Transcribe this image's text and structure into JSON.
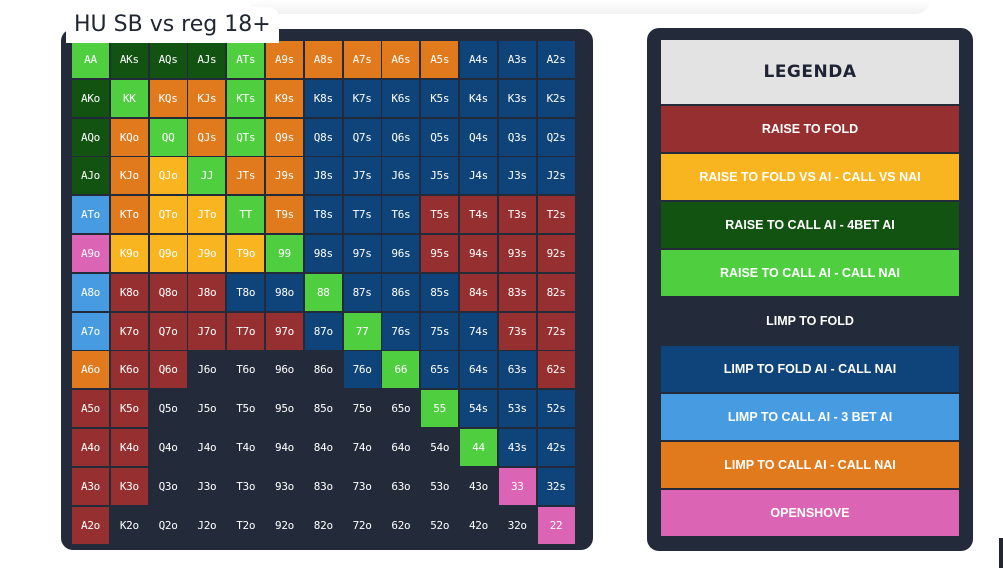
{
  "title": "HU SB vs reg 18+",
  "colors": {
    "R2F": "#963030",
    "R2F_VS": "#f9b520",
    "RC_4B": "#125312",
    "RC_CN": "#4fcf40",
    "LF": "#232b3a",
    "LF_CN": "#0f447a",
    "LC_3B": "#479be0",
    "LC_CN": "#e07a1c",
    "OS": "#dc64b4"
  },
  "legend": {
    "title": "LEGENDA",
    "items": [
      {
        "code": "R2F",
        "label": "RAISE TO FOLD"
      },
      {
        "code": "R2F_VS",
        "label": "RAISE TO FOLD VS AI - CALL VS NAI"
      },
      {
        "code": "RC_4B",
        "label": "RAISE TO CALL AI - 4BET AI"
      },
      {
        "code": "RC_CN",
        "label": "RAISE TO CALL AI - CALL NAI"
      },
      {
        "code": "LF",
        "label": "LIMP TO FOLD"
      },
      {
        "code": "LF_CN",
        "label": "LIMP TO FOLD AI - CALL NAI"
      },
      {
        "code": "LC_3B",
        "label": "LIMP TO CALL AI - 3 BET AI"
      },
      {
        "code": "LC_CN",
        "label": "LIMP TO CALL AI - CALL NAI"
      },
      {
        "code": "OS",
        "label": "OPENSHOVE"
      }
    ]
  },
  "grid": {
    "rows": [
      [
        [
          "AA",
          "RC_CN"
        ],
        [
          "AKs",
          "RC_4B"
        ],
        [
          "AQs",
          "RC_4B"
        ],
        [
          "AJs",
          "RC_4B"
        ],
        [
          "ATs",
          "RC_CN"
        ],
        [
          "A9s",
          "LC_CN"
        ],
        [
          "A8s",
          "LC_CN"
        ],
        [
          "A7s",
          "LC_CN"
        ],
        [
          "A6s",
          "LC_CN"
        ],
        [
          "A5s",
          "LC_CN"
        ],
        [
          "A4s",
          "LF_CN"
        ],
        [
          "A3s",
          "LF_CN"
        ],
        [
          "A2s",
          "LF_CN"
        ]
      ],
      [
        [
          "AKo",
          "RC_4B"
        ],
        [
          "KK",
          "RC_CN"
        ],
        [
          "KQs",
          "LC_CN"
        ],
        [
          "KJs",
          "LC_CN"
        ],
        [
          "KTs",
          "RC_CN"
        ],
        [
          "K9s",
          "LC_CN"
        ],
        [
          "K8s",
          "LF_CN"
        ],
        [
          "K7s",
          "LF_CN"
        ],
        [
          "K6s",
          "LF_CN"
        ],
        [
          "K5s",
          "LF_CN"
        ],
        [
          "K4s",
          "LF_CN"
        ],
        [
          "K3s",
          "LF_CN"
        ],
        [
          "K2s",
          "LF_CN"
        ]
      ],
      [
        [
          "AQo",
          "RC_4B"
        ],
        [
          "KQo",
          "LC_CN"
        ],
        [
          "QQ",
          "RC_CN"
        ],
        [
          "QJs",
          "LC_CN"
        ],
        [
          "QTs",
          "RC_CN"
        ],
        [
          "Q9s",
          "LC_CN"
        ],
        [
          "Q8s",
          "LF_CN"
        ],
        [
          "Q7s",
          "LF_CN"
        ],
        [
          "Q6s",
          "LF_CN"
        ],
        [
          "Q5s",
          "LF_CN"
        ],
        [
          "Q4s",
          "LF_CN"
        ],
        [
          "Q3s",
          "LF_CN"
        ],
        [
          "Q2s",
          "LF_CN"
        ]
      ],
      [
        [
          "AJo",
          "RC_4B"
        ],
        [
          "KJo",
          "LC_CN"
        ],
        [
          "QJo",
          "R2F_VS"
        ],
        [
          "JJ",
          "RC_CN"
        ],
        [
          "JTs",
          "LC_CN"
        ],
        [
          "J9s",
          "LC_CN"
        ],
        [
          "J8s",
          "LF_CN"
        ],
        [
          "J7s",
          "LF_CN"
        ],
        [
          "J6s",
          "LF_CN"
        ],
        [
          "J5s",
          "LF_CN"
        ],
        [
          "J4s",
          "LF_CN"
        ],
        [
          "J3s",
          "LF_CN"
        ],
        [
          "J2s",
          "LF_CN"
        ]
      ],
      [
        [
          "ATo",
          "LC_3B"
        ],
        [
          "KTo",
          "LC_CN"
        ],
        [
          "QTo",
          "R2F_VS"
        ],
        [
          "JTo",
          "R2F_VS"
        ],
        [
          "TT",
          "RC_CN"
        ],
        [
          "T9s",
          "LC_CN"
        ],
        [
          "T8s",
          "LF_CN"
        ],
        [
          "T7s",
          "LF_CN"
        ],
        [
          "T6s",
          "LF_CN"
        ],
        [
          "T5s",
          "R2F"
        ],
        [
          "T4s",
          "R2F"
        ],
        [
          "T3s",
          "R2F"
        ],
        [
          "T2s",
          "R2F"
        ]
      ],
      [
        [
          "A9o",
          "OS"
        ],
        [
          "K9o",
          "R2F_VS"
        ],
        [
          "Q9o",
          "R2F_VS"
        ],
        [
          "J9o",
          "R2F_VS"
        ],
        [
          "T9o",
          "R2F_VS"
        ],
        [
          "99",
          "RC_CN"
        ],
        [
          "98s",
          "LF_CN"
        ],
        [
          "97s",
          "LF_CN"
        ],
        [
          "96s",
          "LF_CN"
        ],
        [
          "95s",
          "R2F"
        ],
        [
          "94s",
          "R2F"
        ],
        [
          "93s",
          "R2F"
        ],
        [
          "92s",
          "R2F"
        ]
      ],
      [
        [
          "A8o",
          "LC_3B"
        ],
        [
          "K8o",
          "R2F"
        ],
        [
          "Q8o",
          "R2F"
        ],
        [
          "J8o",
          "R2F"
        ],
        [
          "T8o",
          "LF_CN"
        ],
        [
          "98o",
          "LF_CN"
        ],
        [
          "88",
          "RC_CN"
        ],
        [
          "87s",
          "LF_CN"
        ],
        [
          "86s",
          "LF_CN"
        ],
        [
          "85s",
          "LF_CN"
        ],
        [
          "84s",
          "R2F"
        ],
        [
          "83s",
          "R2F"
        ],
        [
          "82s",
          "R2F"
        ]
      ],
      [
        [
          "A7o",
          "LC_3B"
        ],
        [
          "K7o",
          "R2F"
        ],
        [
          "Q7o",
          "R2F"
        ],
        [
          "J7o",
          "R2F"
        ],
        [
          "T7o",
          "R2F"
        ],
        [
          "97o",
          "R2F"
        ],
        [
          "87o",
          "LF_CN"
        ],
        [
          "77",
          "RC_CN"
        ],
        [
          "76s",
          "LF_CN"
        ],
        [
          "75s",
          "LF_CN"
        ],
        [
          "74s",
          "LF_CN"
        ],
        [
          "73s",
          "R2F"
        ],
        [
          "72s",
          "R2F"
        ]
      ],
      [
        [
          "A6o",
          "LC_CN"
        ],
        [
          "K6o",
          "R2F"
        ],
        [
          "Q6o",
          "R2F"
        ],
        [
          "J6o",
          "LF"
        ],
        [
          "T6o",
          "LF"
        ],
        [
          "96o",
          "LF"
        ],
        [
          "86o",
          "LF"
        ],
        [
          "76o",
          "LF_CN"
        ],
        [
          "66",
          "RC_CN"
        ],
        [
          "65s",
          "LF_CN"
        ],
        [
          "64s",
          "LF_CN"
        ],
        [
          "63s",
          "LF_CN"
        ],
        [
          "62s",
          "R2F"
        ]
      ],
      [
        [
          "A5o",
          "R2F"
        ],
        [
          "K5o",
          "R2F"
        ],
        [
          "Q5o",
          "LF"
        ],
        [
          "J5o",
          "LF"
        ],
        [
          "T5o",
          "LF"
        ],
        [
          "95o",
          "LF"
        ],
        [
          "85o",
          "LF"
        ],
        [
          "75o",
          "LF"
        ],
        [
          "65o",
          "LF"
        ],
        [
          "55",
          "RC_CN"
        ],
        [
          "54s",
          "LF_CN"
        ],
        [
          "53s",
          "LF_CN"
        ],
        [
          "52s",
          "LF_CN"
        ]
      ],
      [
        [
          "A4o",
          "R2F"
        ],
        [
          "K4o",
          "R2F"
        ],
        [
          "Q4o",
          "LF"
        ],
        [
          "J4o",
          "LF"
        ],
        [
          "T4o",
          "LF"
        ],
        [
          "94o",
          "LF"
        ],
        [
          "84o",
          "LF"
        ],
        [
          "74o",
          "LF"
        ],
        [
          "64o",
          "LF"
        ],
        [
          "54o",
          "LF"
        ],
        [
          "44",
          "RC_CN"
        ],
        [
          "43s",
          "LF_CN"
        ],
        [
          "42s",
          "LF_CN"
        ]
      ],
      [
        [
          "A3o",
          "R2F"
        ],
        [
          "K3o",
          "R2F"
        ],
        [
          "Q3o",
          "LF"
        ],
        [
          "J3o",
          "LF"
        ],
        [
          "T3o",
          "LF"
        ],
        [
          "93o",
          "LF"
        ],
        [
          "83o",
          "LF"
        ],
        [
          "73o",
          "LF"
        ],
        [
          "63o",
          "LF"
        ],
        [
          "53o",
          "LF"
        ],
        [
          "43o",
          "LF"
        ],
        [
          "33",
          "OS"
        ],
        [
          "32s",
          "LF_CN"
        ]
      ],
      [
        [
          "A2o",
          "R2F"
        ],
        [
          "K2o",
          "LF"
        ],
        [
          "Q2o",
          "LF"
        ],
        [
          "J2o",
          "LF"
        ],
        [
          "T2o",
          "LF"
        ],
        [
          "92o",
          "LF"
        ],
        [
          "82o",
          "LF"
        ],
        [
          "72o",
          "LF"
        ],
        [
          "62o",
          "LF"
        ],
        [
          "52o",
          "LF"
        ],
        [
          "42o",
          "LF"
        ],
        [
          "32o",
          "LF"
        ],
        [
          "22",
          "OS"
        ]
      ]
    ]
  }
}
